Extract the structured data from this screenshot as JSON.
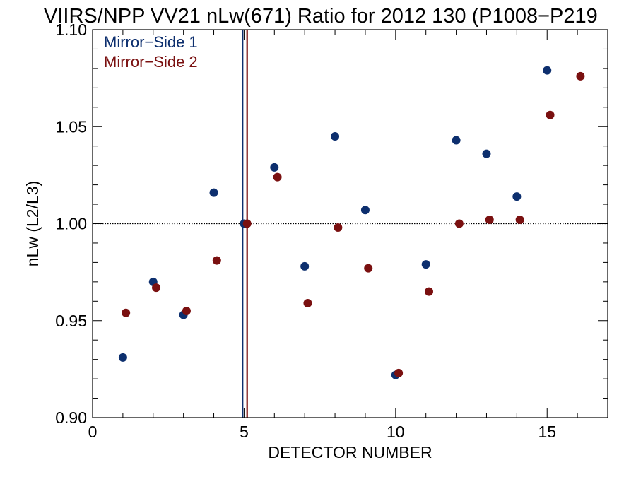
{
  "chart_data": {
    "type": "scatter",
    "title": "VIIRS/NPP VV21 nLw(671) Ratio for 2012 130 (P1008−P219",
    "xlabel": "DETECTOR NUMBER",
    "ylabel": "nLw (L2/L3)",
    "xlim": [
      0,
      17
    ],
    "ylim": [
      0.9,
      1.1
    ],
    "x_ticks": [
      0,
      5,
      10,
      15
    ],
    "x_tick_labels": [
      "0",
      "5",
      "10",
      "15"
    ],
    "y_ticks": [
      0.9,
      0.95,
      1.0,
      1.05,
      1.1
    ],
    "y_tick_labels": [
      "0.90",
      "0.95",
      "1.00",
      "1.05",
      "1.10"
    ],
    "x_minor_step": 1,
    "y_minor_step": 0.01,
    "reference_line_y": 1.0,
    "grid": false,
    "legend_position": "top-left",
    "series": [
      {
        "name": "Mirror−Side 1",
        "color": "#0d2f6e",
        "x": [
          1,
          2,
          3,
          4,
          5,
          6,
          7,
          8,
          9,
          10,
          11,
          12,
          13,
          14,
          15
        ],
        "y": [
          0.931,
          0.97,
          0.953,
          1.016,
          1.0,
          1.029,
          0.978,
          1.045,
          1.007,
          0.922,
          0.979,
          1.043,
          1.036,
          1.014,
          1.079
        ],
        "vline_x": 4.95
      },
      {
        "name": "Mirror−Side 2",
        "color": "#7a1010",
        "x": [
          1.1,
          2.1,
          3.1,
          4.1,
          5.1,
          6.1,
          7.1,
          8.1,
          9.1,
          10.1,
          11.1,
          12.1,
          13.1,
          14.1,
          15.1,
          16.1
        ],
        "y": [
          0.954,
          0.967,
          0.955,
          0.981,
          1.0,
          1.024,
          0.959,
          0.998,
          0.977,
          0.923,
          0.965,
          1.0,
          1.002,
          1.002,
          1.056,
          1.076
        ],
        "vline_x": 5.1
      }
    ]
  }
}
